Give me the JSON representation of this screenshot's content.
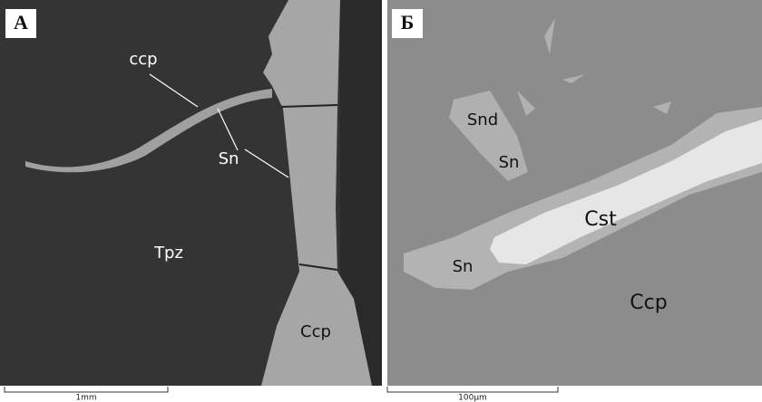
{
  "panels": [
    {
      "label": "А",
      "annotations": [
        "ccp",
        "Sn",
        "Tpz",
        "Ccp"
      ],
      "scale_bar": "1mm"
    },
    {
      "label": "Б",
      "annotations": [
        "Snd",
        "Sn",
        "Cst",
        "Sn",
        "Ccp"
      ],
      "scale_bar": "100µm"
    }
  ]
}
